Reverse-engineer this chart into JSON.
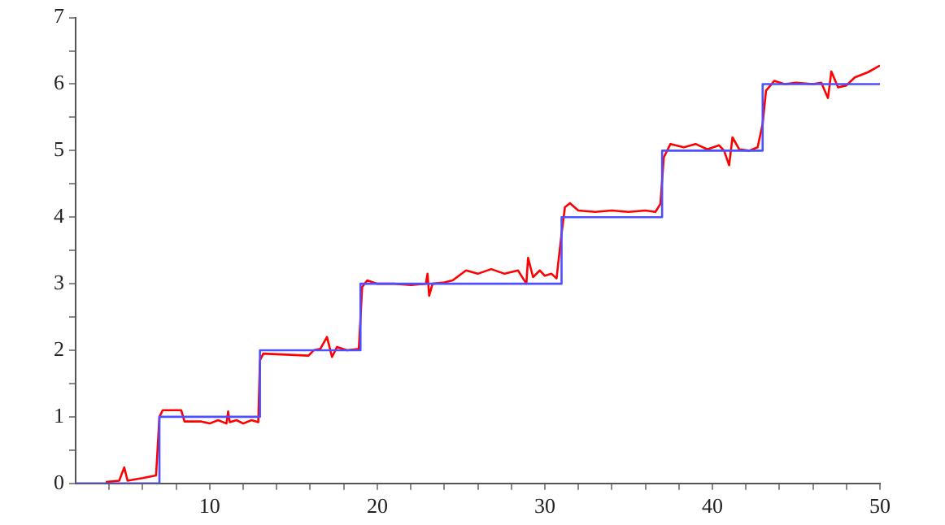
{
  "chart_data": {
    "type": "line",
    "xlim": [
      2,
      50
    ],
    "ylim": [
      0,
      7
    ],
    "xticks": [
      {
        "value": 4,
        "label": null
      },
      {
        "value": 6,
        "label": null
      },
      {
        "value": 8,
        "label": null
      },
      10,
      {
        "value": 12,
        "label": null
      },
      {
        "value": 14,
        "label": null
      },
      {
        "value": 16,
        "label": null
      },
      {
        "value": 18,
        "label": null
      },
      20,
      {
        "value": 22,
        "label": null
      },
      {
        "value": 24,
        "label": null
      },
      {
        "value": 26,
        "label": null
      },
      {
        "value": 28,
        "label": null
      },
      30,
      {
        "value": 32,
        "label": null
      },
      {
        "value": 34,
        "label": null
      },
      {
        "value": 36,
        "label": null
      },
      {
        "value": 38,
        "label": null
      },
      40,
      {
        "value": 42,
        "label": null
      },
      {
        "value": 44,
        "label": null
      },
      {
        "value": 46,
        "label": null
      },
      {
        "value": 48,
        "label": null
      },
      50
    ],
    "yticks": [
      0,
      {
        "value": 0.5,
        "label": null
      },
      1,
      {
        "value": 1.5,
        "label": null
      },
      2,
      {
        "value": 2.5,
        "label": null
      },
      3,
      {
        "value": 3.5,
        "label": null
      },
      4,
      {
        "value": 4.5,
        "label": null
      },
      5,
      {
        "value": 5.5,
        "label": null
      },
      6,
      {
        "value": 6.5,
        "label": null
      },
      7
    ],
    "grid": false,
    "legend": false,
    "marker": "none",
    "line_style": "solid",
    "series": [
      {
        "type": "step",
        "color": "#4f4fff",
        "x": [
          2,
          7,
          13,
          19,
          31,
          37,
          43,
          50
        ],
        "values": [
          0,
          1,
          2,
          3,
          4,
          5,
          6,
          6
        ]
      },
      {
        "color": "#ff0000",
        "x": [
          3.8,
          4.6,
          4.9,
          5.1,
          5.3,
          6,
          6.8,
          7,
          7.2,
          8.3,
          8.5,
          9.5,
          10,
          10.5,
          11,
          11.1,
          11.2,
          11.6,
          12,
          12.5,
          12.9,
          13,
          13.2,
          15.9,
          16.2,
          16.6,
          17,
          17.3,
          17.6,
          18.2,
          18.9,
          19.1,
          19.4,
          20,
          21,
          22,
          22.9,
          23,
          23.1,
          23.3,
          24,
          24.5,
          25.3,
          26,
          26.8,
          27.6,
          28.4,
          28.9,
          29,
          29.3,
          29.7,
          30,
          30.4,
          30.7,
          31,
          31.2,
          31.5,
          32,
          33,
          34,
          35,
          36,
          36.6,
          36.9,
          37.1,
          37.5,
          38.3,
          39,
          39.7,
          40.4,
          40.7,
          41,
          41.2,
          41.6,
          42.2,
          42.7,
          43,
          43.2,
          43.7,
          44.3,
          45,
          46,
          46.5,
          46.9,
          47.1,
          47.5,
          48,
          48.5,
          49.3,
          50
        ],
        "values": [
          0.02,
          0.04,
          0.24,
          0.04,
          0.05,
          0.08,
          0.12,
          1.0,
          1.1,
          1.1,
          0.93,
          0.93,
          0.9,
          0.95,
          0.9,
          1.08,
          0.92,
          0.95,
          0.9,
          0.95,
          0.92,
          1.85,
          1.95,
          1.92,
          2.0,
          2.02,
          2.2,
          1.9,
          2.05,
          2.0,
          2.02,
          2.95,
          3.05,
          3.0,
          3.0,
          2.98,
          3.0,
          3.15,
          2.82,
          3.0,
          3.02,
          3.05,
          3.2,
          3.15,
          3.22,
          3.15,
          3.2,
          3.0,
          3.39,
          3.1,
          3.2,
          3.12,
          3.15,
          3.08,
          3.75,
          4.15,
          4.21,
          4.1,
          4.08,
          4.1,
          4.08,
          4.1,
          4.08,
          4.2,
          4.9,
          5.1,
          5.05,
          5.1,
          5.02,
          5.08,
          5.0,
          4.78,
          5.2,
          5.02,
          5.0,
          5.05,
          5.4,
          5.9,
          6.05,
          6.0,
          6.02,
          6.0,
          6.02,
          5.79,
          6.19,
          5.95,
          5.98,
          6.1,
          6.18,
          6.28
        ]
      }
    ]
  }
}
